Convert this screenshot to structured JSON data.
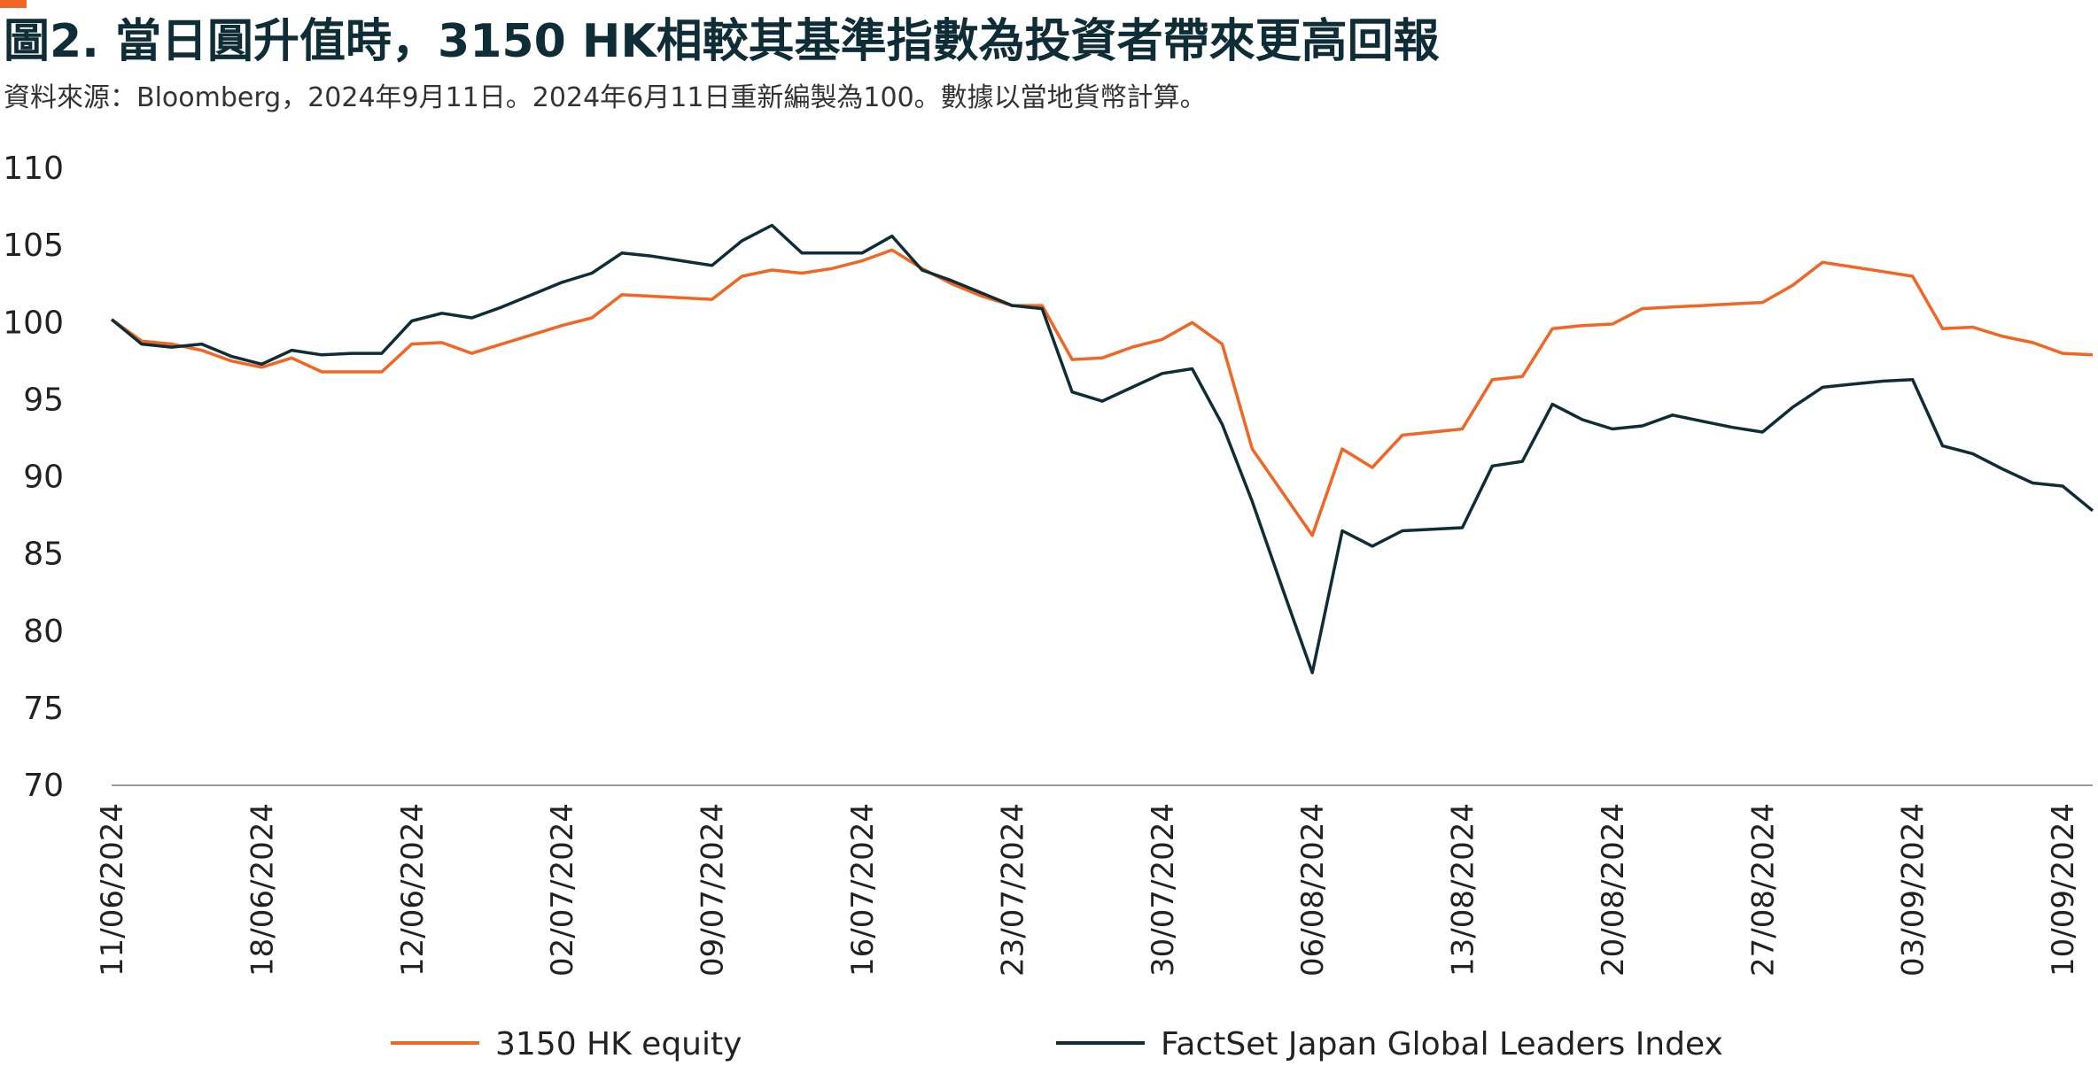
{
  "chart_data": {
    "type": "line",
    "title": "圖2. 當日圓升值時，3150 HK相較其基準指數為投資者帶來更高回報",
    "subtitle": "資料來源：Bloomberg，2024年9月11日。2024年6月11日重新編製為100。數據以當地貨幣計算。",
    "categories": [
      "11/06/2024",
      null,
      null,
      null,
      null,
      "18/06/2024",
      null,
      null,
      null,
      null,
      "12/06/2024",
      null,
      null,
      null,
      null,
      "02/07/2024",
      null,
      null,
      null,
      null,
      "09/07/2024",
      null,
      null,
      null,
      null,
      "16/07/2024",
      null,
      null,
      null,
      null,
      "23/07/2024",
      null,
      null,
      null,
      null,
      "30/07/2024",
      null,
      null,
      null,
      null,
      "06/08/2024",
      null,
      null,
      null,
      null,
      "13/08/2024",
      null,
      null,
      null,
      null,
      "20/08/2024",
      null,
      null,
      null,
      null,
      "27/08/2024",
      null,
      null,
      null,
      null,
      "03/09/2024",
      null,
      null,
      null,
      null,
      "10/09/2024",
      null
    ],
    "series": [
      {
        "name": "3150 HK equity",
        "color": "#f26522",
        "values": [
          100.2,
          98.8,
          98.6,
          98.2,
          97.5,
          97.1,
          97.7,
          96.8,
          96.8,
          96.8,
          98.6,
          98.7,
          98.0,
          98.6,
          99.2,
          99.8,
          100.3,
          101.8,
          101.7,
          101.6,
          101.5,
          103.0,
          103.4,
          103.2,
          103.5,
          104.0,
          104.7,
          103.5,
          102.5,
          101.7,
          101.1,
          101.1,
          97.6,
          97.7,
          98.4,
          98.9,
          100.0,
          98.6,
          91.8,
          89.0,
          86.2,
          91.8,
          90.6,
          92.7,
          92.9,
          93.1,
          96.3,
          96.5,
          99.6,
          99.8,
          99.9,
          100.9,
          101.0,
          101.1,
          101.2,
          101.3,
          102.4,
          103.9,
          103.6,
          103.3,
          103.0,
          99.6,
          99.7,
          99.1,
          98.7,
          98.0,
          97.9
        ]
      },
      {
        "name": "FactSet Japan Global Leaders Index",
        "color": "#0e2d36",
        "values": [
          100.2,
          98.6,
          98.4,
          98.6,
          97.8,
          97.3,
          98.2,
          97.9,
          98.0,
          98.0,
          100.1,
          100.6,
          100.3,
          101.0,
          101.8,
          102.6,
          103.2,
          104.5,
          104.3,
          104.0,
          103.7,
          105.3,
          106.3,
          104.5,
          104.5,
          104.5,
          105.6,
          103.4,
          102.7,
          101.9,
          101.1,
          100.9,
          95.5,
          94.9,
          95.8,
          96.7,
          97.0,
          93.4,
          88.4,
          82.8,
          77.3,
          86.5,
          85.5,
          86.5,
          86.6,
          86.7,
          90.7,
          91.0,
          94.7,
          93.7,
          93.1,
          93.3,
          94.0,
          93.6,
          93.2,
          92.9,
          94.5,
          95.8,
          96.0,
          96.2,
          96.3,
          92.0,
          91.5,
          90.5,
          89.6,
          89.4,
          87.8
        ]
      }
    ],
    "ylim": [
      70,
      110
    ],
    "yticks": [
      70,
      75,
      80,
      85,
      90,
      95,
      100,
      105,
      110
    ],
    "grid": false
  }
}
